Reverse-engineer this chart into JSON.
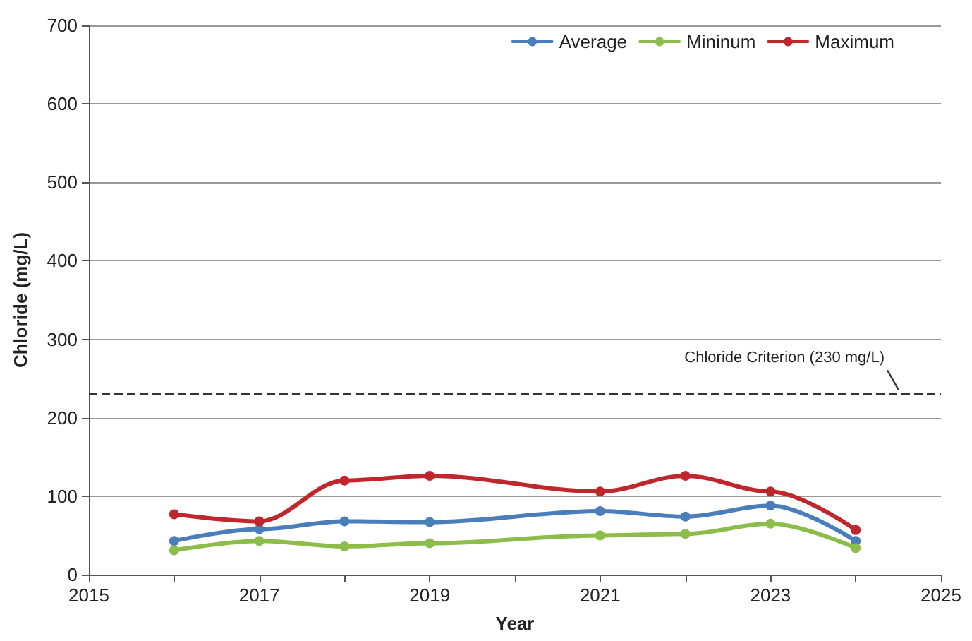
{
  "chart_data": {
    "type": "line",
    "xlabel": "Year",
    "ylabel": "Chloride (mg/L)",
    "x": [
      2016,
      2017,
      2018,
      2019,
      2021,
      2022,
      2023,
      2024
    ],
    "series": [
      {
        "name": "Average",
        "color": "#4a7ebb",
        "values": [
          43,
          58,
          68,
          67,
          81,
          74,
          88,
          43
        ]
      },
      {
        "name": "Mininum",
        "color": "#8cbd4a",
        "values": [
          31,
          43,
          36,
          40,
          50,
          52,
          65,
          34
        ]
      },
      {
        "name": "Maximum",
        "color": "#c0272d",
        "values": [
          77,
          68,
          120,
          126,
          106,
          126,
          106,
          57
        ]
      }
    ],
    "xlim": [
      2015,
      2025
    ],
    "xticks": [
      2015,
      {
        "value": 2016,
        "label": null
      },
      2017,
      {
        "value": 2018,
        "label": null
      },
      2019,
      {
        "value": 2020,
        "label": null
      },
      2021,
      {
        "value": 2022,
        "label": null
      },
      2023,
      {
        "value": 2024,
        "label": null
      },
      2025
    ],
    "ylim": [
      0,
      700
    ],
    "yticks": [
      0,
      100,
      200,
      300,
      400,
      500,
      600,
      700
    ],
    "ref_lines": [
      {
        "axis": "y",
        "value": 230,
        "label": "Chloride Criterion (230 mg/L)",
        "color": "#333333",
        "line_style": "dashed"
      }
    ],
    "grid": "y",
    "legend": "top right",
    "marker": "circle",
    "line_style": "solid"
  }
}
